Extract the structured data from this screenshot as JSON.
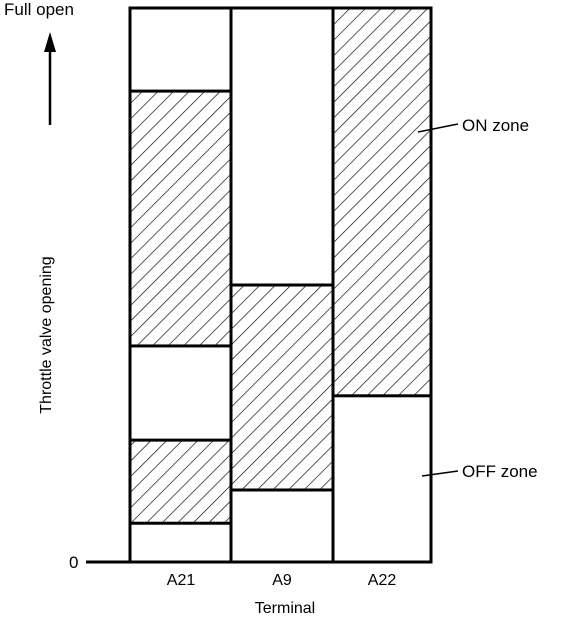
{
  "labels": {
    "full_open": "Full open",
    "zero": "0",
    "y_axis": "Throttle valve opening",
    "x_axis": "Terminal",
    "on_zone": "ON zone",
    "off_zone": "OFF zone"
  },
  "terminals": [
    {
      "name": "A21",
      "on_ranges": [
        [
          0.07,
          0.22
        ],
        [
          0.39,
          0.85
        ]
      ]
    },
    {
      "name": "A9",
      "on_ranges": [
        [
          0.13,
          0.5
        ]
      ]
    },
    {
      "name": "A22",
      "on_ranges": [
        [
          0.3,
          1.0
        ]
      ]
    }
  ],
  "y_range": [
    0,
    1
  ]
}
